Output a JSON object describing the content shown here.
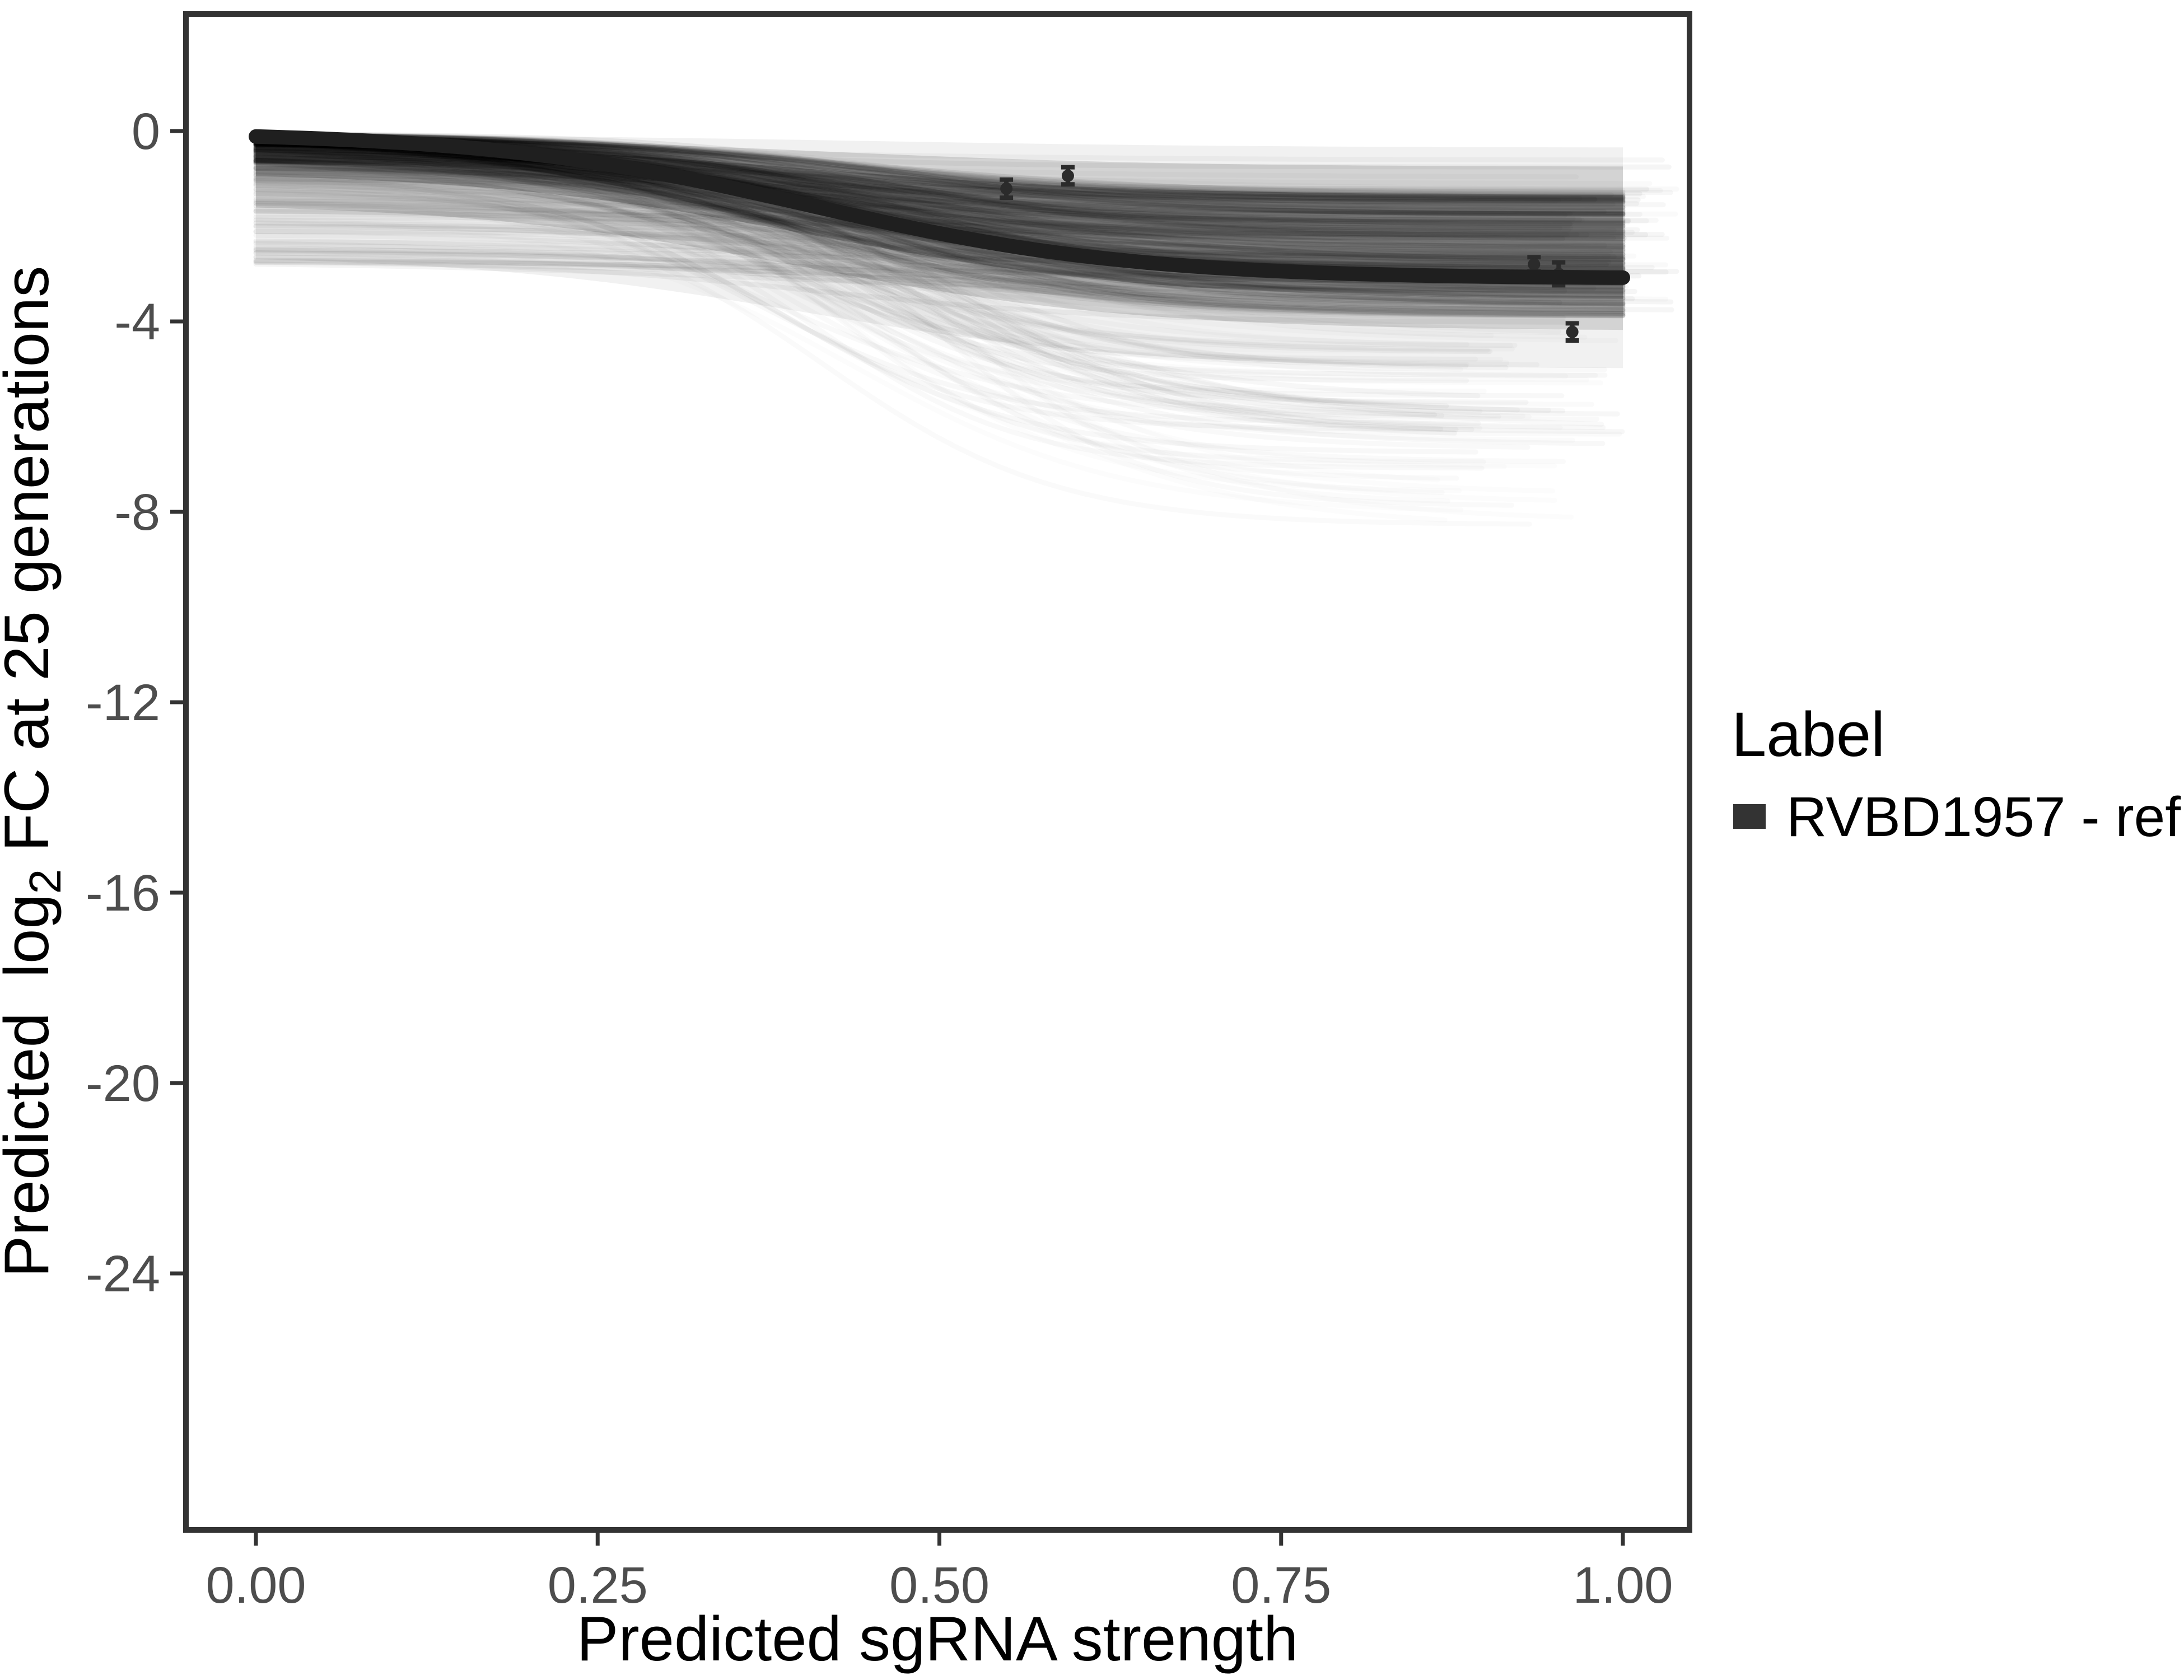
{
  "chart_data": {
    "type": "line",
    "title": "",
    "xlabel": "Predicted sgRNA strength",
    "ylabel": "Predicted  log2 FC at 25 generations",
    "ylabel_parts": {
      "pre": "Predicted  log",
      "sub": "2",
      "post": " FC at 25 generations"
    },
    "xlim": [
      -0.05,
      1.05
    ],
    "ylim": [
      -29.4,
      2.45
    ],
    "grid": "off",
    "x_ticks": {
      "values": [
        0.0,
        0.25,
        0.5,
        0.75,
        1.0
      ],
      "labels": [
        "0.00",
        "0.25",
        "0.50",
        "0.75",
        "1.00"
      ]
    },
    "y_ticks": {
      "values": [
        0,
        -4,
        -8,
        -12,
        -16,
        -20,
        -24
      ],
      "labels": [
        "0",
        "-4",
        "-8",
        "-12",
        "-16",
        "-20",
        "-24"
      ]
    },
    "legend": {
      "position": "right",
      "title": "Label",
      "entries": [
        {
          "label": "RVBD1957 - ref",
          "color": "#333333",
          "key": "thick-line"
        }
      ]
    },
    "main_curve": {
      "name": "RVBD1957 - ref",
      "model": "sigmoid",
      "params": {
        "y0": -0.02,
        "L": -3.08,
        "k": 8.5,
        "x0": 0.405
      },
      "x_range": [
        0.0,
        1.0
      ],
      "sample_points": [
        [
          0.0,
          -0.12
        ],
        [
          0.1,
          -0.27
        ],
        [
          0.2,
          -0.5
        ],
        [
          0.3,
          -0.94
        ],
        [
          0.4,
          -1.53
        ],
        [
          0.5,
          -2.12
        ],
        [
          0.6,
          -2.59
        ],
        [
          0.7,
          -2.85
        ],
        [
          0.8,
          -2.97
        ],
        [
          0.9,
          -3.03
        ],
        [
          1.0,
          -3.06
        ]
      ],
      "color": "#1f1f1f",
      "stroke_width": 26
    },
    "observed_points": [
      {
        "x": 0.549,
        "y": -1.21,
        "err": 0.19
      },
      {
        "x": 0.594,
        "y": -0.94,
        "err": 0.18
      },
      {
        "x": 0.935,
        "y": -2.8,
        "err": 0.15
      },
      {
        "x": 0.953,
        "y": -3.0,
        "err": 0.24
      },
      {
        "x": 0.963,
        "y": -4.22,
        "err": 0.18
      }
    ],
    "point_style": {
      "color": "#2b2b2b",
      "radius": 11,
      "cap_half_width": 12,
      "stroke_width": 8
    },
    "ensemble": {
      "description": "background fits for all other genes",
      "n": 430,
      "seed": 42,
      "color": "#000000",
      "stroke_width": 9,
      "bands": [
        {
          "top": {
            "s0": -0.22,
            "e": -1.35,
            "k": 8,
            "x0": 0.4
          },
          "bottom": {
            "s0": -0.85,
            "e": -3.55,
            "k": 8,
            "x0": 0.41
          },
          "alpha": 0.2
        },
        {
          "top": {
            "s0": -0.12,
            "e": -0.75,
            "k": 8,
            "x0": 0.42
          },
          "bottom": {
            "s0": -1.5,
            "e": -4.2,
            "k": 8,
            "x0": 0.4
          },
          "alpha": 0.12
        },
        {
          "top": {
            "s0": -0.07,
            "e": -0.35,
            "k": 7,
            "x0": 0.45
          },
          "bottom": {
            "s0": -2.6,
            "e": -5.0,
            "k": 8,
            "x0": 0.4
          },
          "alpha": 0.055
        }
      ],
      "classes": [
        {
          "name": "core",
          "frac": 0.62,
          "s0": [
            -0.04,
            -0.6
          ],
          "end": [
            -1.25,
            -3.9
          ],
          "k": [
            7,
            11
          ],
          "x0": [
            0.34,
            0.48
          ],
          "alpha": [
            0.025,
            0.06
          ],
          "xmax": [
            1.0,
            1.0
          ]
        },
        {
          "name": "shallow",
          "frac": 0.2,
          "s0": [
            -0.25,
            -2.8
          ],
          "end_delta": [
            -0.25,
            -1.35
          ],
          "k": [
            6,
            10
          ],
          "x0": [
            0.3,
            0.5
          ],
          "alpha": [
            0.018,
            0.045
          ],
          "xmax": [
            0.95,
            1.04
          ]
        },
        {
          "name": "diver",
          "frac": 0.14,
          "s0": [
            -0.15,
            -1.25
          ],
          "end": [
            -4.2,
            -6.8
          ],
          "k": [
            8,
            14
          ],
          "x0": [
            0.36,
            0.52
          ],
          "alpha": [
            0.013,
            0.032
          ],
          "xmax": [
            0.86,
            1.0
          ]
        },
        {
          "name": "deep",
          "frac": 0.04,
          "s0": [
            -0.3,
            -1.8
          ],
          "end": [
            -6.8,
            -8.4
          ],
          "k": [
            9,
            14
          ],
          "x0": [
            0.4,
            0.52
          ],
          "alpha": [
            0.01,
            0.022
          ],
          "xmax": [
            0.86,
            0.97
          ]
        }
      ]
    },
    "colors": {
      "panel_border": "#333333",
      "tick": "#333333",
      "tick_label": "#4d4d4d",
      "axis_title": "#000000",
      "legend_text": "#000000",
      "background": "#ffffff"
    }
  }
}
